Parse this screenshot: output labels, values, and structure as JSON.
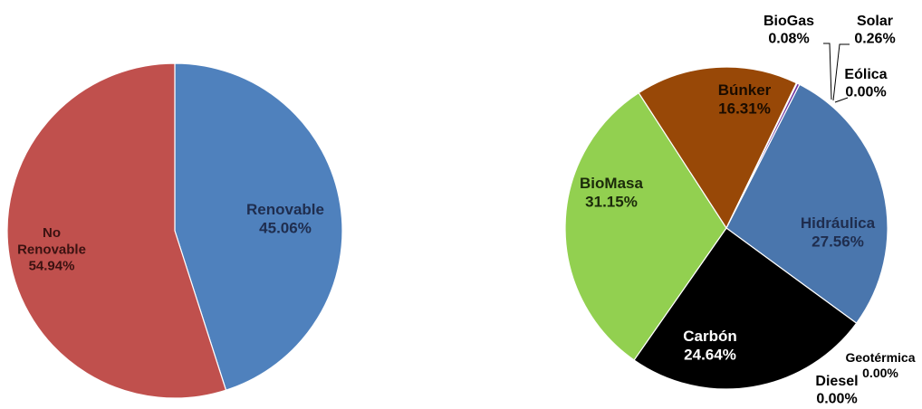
{
  "chart_data": [
    {
      "type": "pie",
      "slices": [
        {
          "label_lines": [
            "Renovable"
          ],
          "value": 45.06,
          "value_text": "45.06%",
          "color": "#4F81BD",
          "label_color": "#1F2D4E"
        },
        {
          "label_lines": [
            "No",
            "Renovable"
          ],
          "value": 54.94,
          "value_text": "54.94%",
          "color": "#C0504D",
          "label_color": "#3B1211"
        }
      ]
    },
    {
      "type": "pie",
      "slices": [
        {
          "label_lines": [
            "Eólica"
          ],
          "value": 0.0,
          "value_text": "0.00%",
          "color": "#4F81BD",
          "label_color": "#000000"
        },
        {
          "label_lines": [
            "Hidráulica"
          ],
          "value": 27.56,
          "value_text": "27.56%",
          "color": "#4A76AD",
          "label_color": "#1F2D4E"
        },
        {
          "label_lines": [
            "Geotérmica"
          ],
          "value": 0.0,
          "value_text": "0.00%",
          "color": "#4A76AD",
          "label_color": "#000000"
        },
        {
          "label_lines": [
            "Diesel"
          ],
          "value": 0.0,
          "value_text": "0.00%",
          "color": "#7F7F7F",
          "label_color": "#000000"
        },
        {
          "label_lines": [
            "Carbón"
          ],
          "value": 24.64,
          "value_text": "24.64%",
          "color": "#000000",
          "label_color": "#FFFFFF"
        },
        {
          "label_lines": [
            "BioMasa"
          ],
          "value": 31.15,
          "value_text": "31.15%",
          "color": "#92D050",
          "label_color": "#1B2A0A"
        },
        {
          "label_lines": [
            "Búnker"
          ],
          "value": 16.31,
          "value_text": "16.31%",
          "color": "#984807",
          "label_color": "#1A0C00"
        },
        {
          "label_lines": [
            "BioGas"
          ],
          "value": 0.08,
          "value_text": "0.08%",
          "color": "#F79646",
          "label_color": "#000000"
        },
        {
          "label_lines": [
            "Solar"
          ],
          "value": 0.26,
          "value_text": "0.26%",
          "color": "#7030A0",
          "label_color": "#000000"
        }
      ]
    }
  ]
}
